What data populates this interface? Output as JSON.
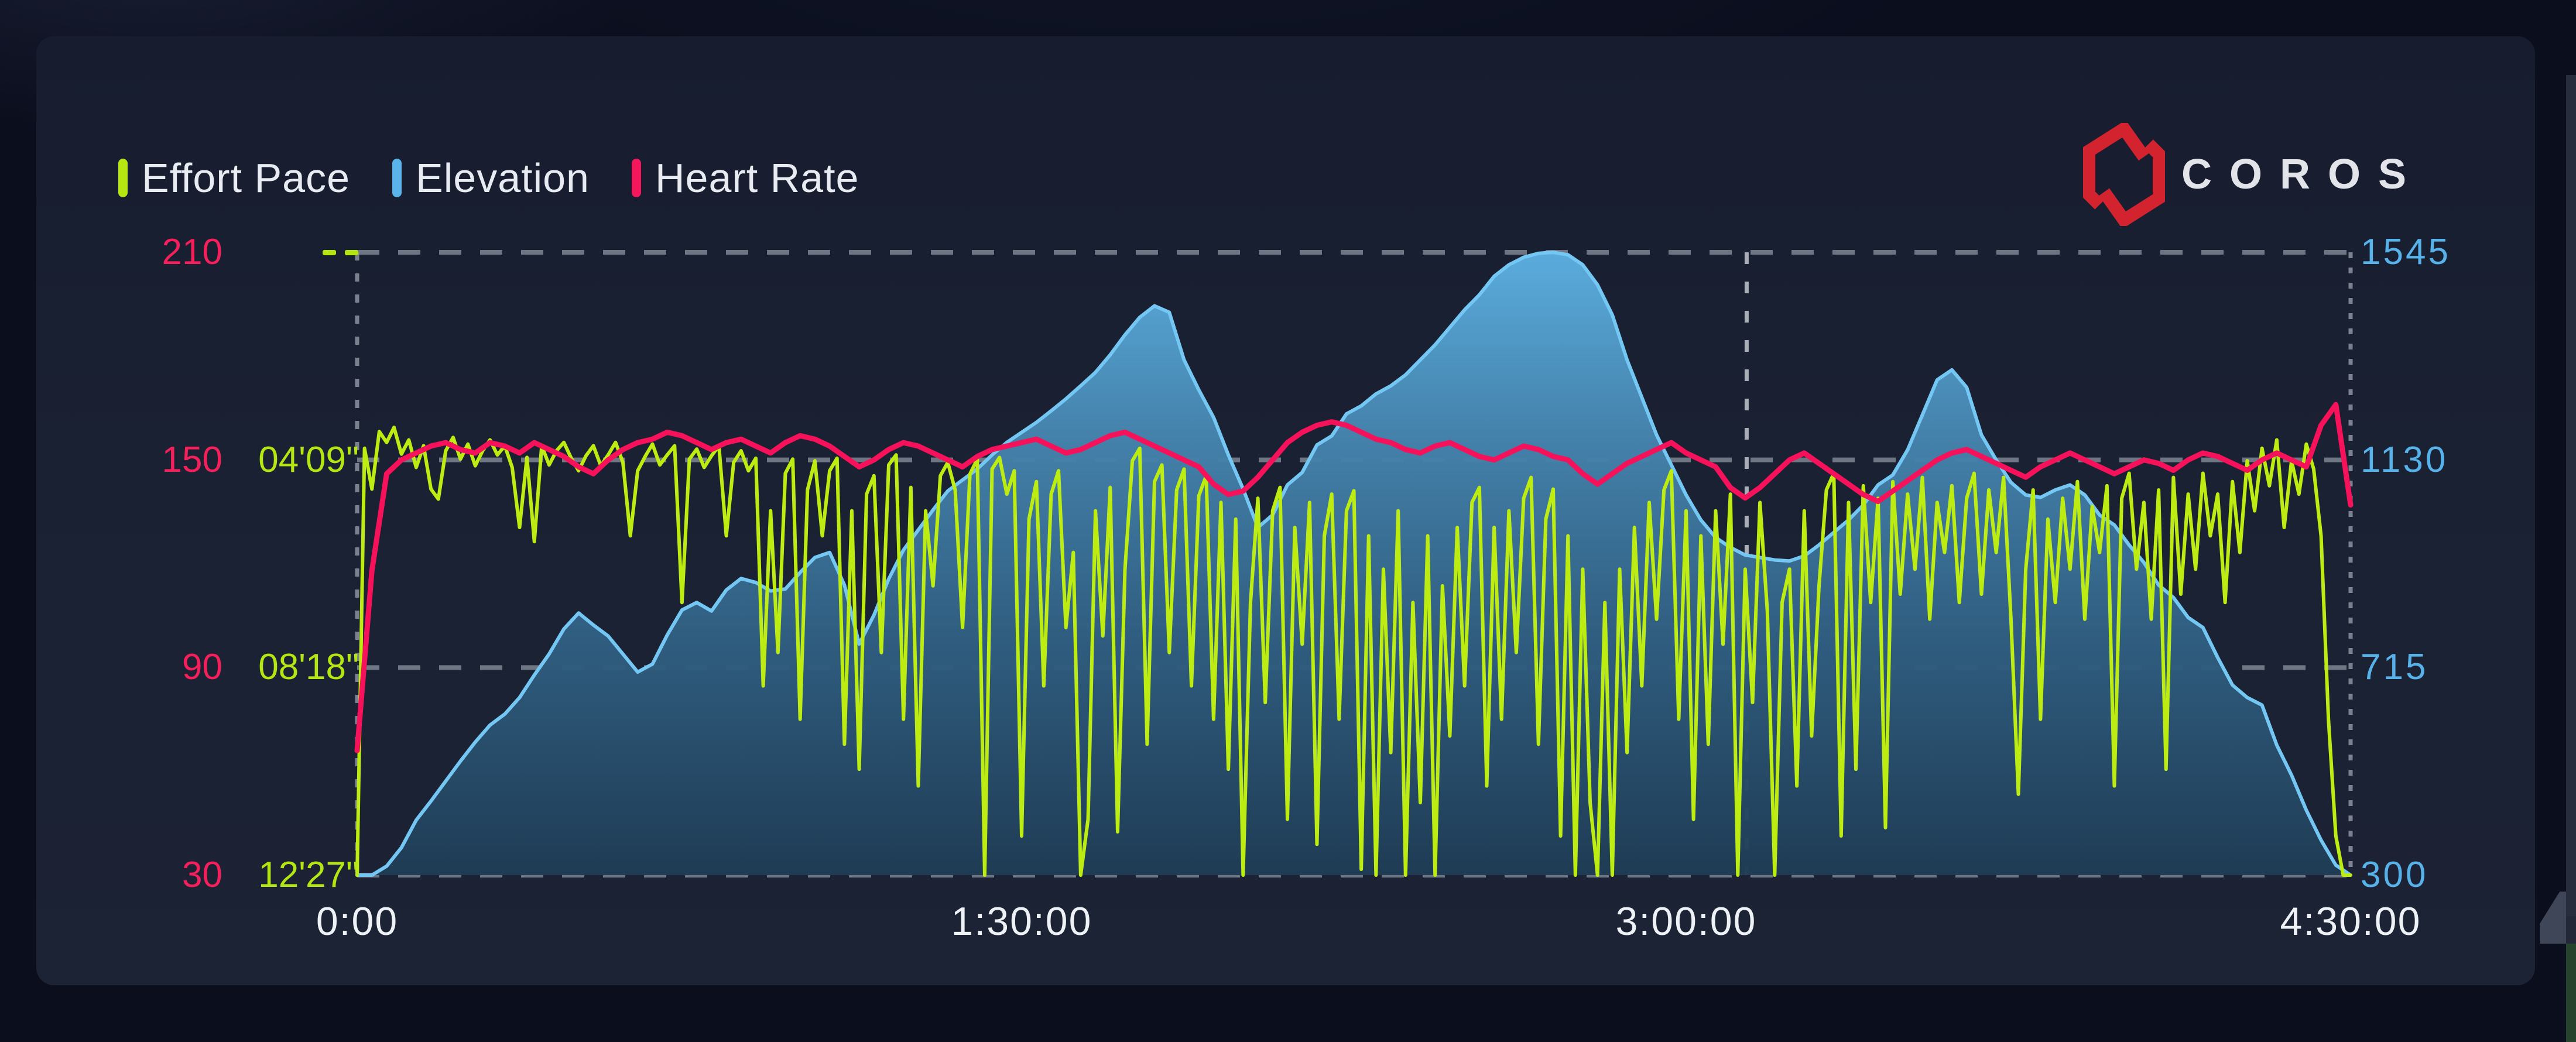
{
  "legend": {
    "items": [
      {
        "label": "Effort Pace",
        "color": "#b6e713"
      },
      {
        "label": "Elevation",
        "color": "#5ab4ea"
      },
      {
        "label": "Heart Rate",
        "color": "#f4175c"
      }
    ]
  },
  "logo": {
    "text": "COROS",
    "icon_color": "#d2232e",
    "text_color": "#e2e4e9"
  },
  "axes": {
    "grid_color": "#7e8591",
    "marker_color": "#b9bdc5",
    "edge_line_color": "#949aa5",
    "heart_rate": {
      "color": "#f4205c",
      "labels": [
        "210",
        "150",
        "90",
        "30"
      ]
    },
    "pace": {
      "color": "#b4e613",
      "labels": [
        "- -",
        "04'09\"",
        "08'18\"",
        "12'27\""
      ]
    },
    "elevation": {
      "color": "#57b2ea",
      "labels": [
        "1545",
        "1130",
        "715",
        "300"
      ]
    },
    "time": {
      "color": "#eef1f6",
      "labels": [
        "0:00",
        "1:30:00",
        "3:00:00",
        "4:30:00"
      ]
    }
  },
  "chart_data": {
    "type": "line",
    "title": "",
    "x_axis": {
      "label": "time",
      "range_min": [
        0,
        270
      ],
      "tick_labels": [
        "0:00",
        "1:30:00",
        "3:00:00",
        "4:30:00"
      ],
      "tick_minutes": [
        0,
        90,
        180,
        270
      ]
    },
    "grid": "dashed-horizontal",
    "legend_position": "top-left",
    "marker_time_min": 188.2,
    "pace_axis": {
      "top_sec": 0,
      "bottom_sec": 747,
      "tick_sec": [
        0,
        249,
        498,
        747
      ]
    },
    "hr_axis": {
      "top": 210,
      "bottom": 30,
      "ticks": [
        210,
        150,
        90,
        30
      ]
    },
    "elev_axis": {
      "top": 1545,
      "bottom": 300,
      "ticks": [
        1545,
        1130,
        715,
        300
      ]
    },
    "series": [
      {
        "name": "Effort Pace",
        "type": "line",
        "unit": "sec_per_km",
        "color": "#bdec13",
        "step_min": 1,
        "values": [
          747,
          235,
          284,
          215,
          228,
          210,
          242,
          225,
          258,
          232,
          284,
          296,
          238,
          222,
          248,
          230,
          256,
          238,
          225,
          243,
          232,
          258,
          330,
          246,
          347,
          232,
          255,
          238,
          228,
          247,
          262,
          244,
          232,
          256,
          243,
          228,
          252,
          340,
          262,
          245,
          230,
          255,
          243,
          232,
          420,
          248,
          236,
          258,
          244,
          232,
          340,
          252,
          238,
          262,
          247,
          520,
          310,
          480,
          265,
          248,
          560,
          285,
          250,
          340,
          262,
          247,
          590,
          310,
          620,
          290,
          268,
          480,
          255,
          243,
          560,
          282,
          640,
          310,
          400,
          268,
          252,
          285,
          450,
          266,
          248,
          747,
          260,
          246,
          290,
          262,
          700,
          320,
          275,
          520,
          290,
          262,
          450,
          360,
          747,
          680,
          310,
          460,
          282,
          695,
          380,
          250,
          235,
          590,
          275,
          255,
          480,
          285,
          260,
          520,
          292,
          268,
          560,
          300,
          620,
          320,
          747,
          420,
          295,
          540,
          310,
          282,
          680,
          330,
          470,
          300,
          710,
          340,
          290,
          560,
          310,
          286,
          740,
          340,
          747,
          380,
          600,
          310,
          747,
          420,
          660,
          340,
          747,
          400,
          580,
          330,
          520,
          300,
          282,
          640,
          330,
          560,
          310,
          480,
          295,
          270,
          590,
          320,
          284,
          700,
          340,
          747,
          380,
          660,
          747,
          420,
          747,
          380,
          600,
          330,
          520,
          300,
          440,
          285,
          262,
          560,
          310,
          680,
          340,
          590,
          310,
          470,
          290,
          747,
          380,
          540,
          300,
          430,
          747,
          420,
          380,
          640,
          310,
          580,
          400,
          285,
          265,
          700,
          300,
          620,
          280,
          420,
          295,
          690,
          275,
          410,
          290,
          380,
          270,
          440,
          300,
          360,
          280,
          420,
          295,
          265,
          410,
          285,
          360,
          270,
          440,
          650,
          380,
          285,
          560,
          320,
          420,
          295,
          380,
          275,
          440,
          305,
          360,
          280,
          640,
          295,
          265,
          380,
          300,
          440,
          285,
          620,
          270,
          410,
          290,
          380,
          265,
          340,
          290,
          420,
          275,
          360,
          250,
          310,
          235,
          280,
          225,
          330,
          250,
          290,
          230,
          260,
          340,
          560,
          700,
          747,
          747
        ]
      },
      {
        "name": "Elevation",
        "type": "area",
        "unit": "m",
        "color": "#74c7f3",
        "step_min": 2,
        "fill_gradient": [
          {
            "offset": "0%",
            "color": "#5cb0e2"
          },
          {
            "offset": "30%",
            "color": "#4584ae"
          },
          {
            "offset": "62%",
            "color": "#305f82"
          },
          {
            "offset": "100%",
            "color": "#1f3c55"
          }
        ],
        "values": [
          300,
          300,
          318,
          355,
          410,
          448,
          488,
          528,
          566,
          600,
          622,
          655,
          700,
          742,
          792,
          824,
          800,
          778,
          742,
          706,
          722,
          780,
          830,
          845,
          828,
          870,
          893,
          885,
          868,
          872,
          905,
          935,
          945,
          880,
          762,
          820,
          892,
          950,
          990,
          1030,
          1068,
          1090,
          1112,
          1140,
          1165,
          1185,
          1205,
          1228,
          1252,
          1278,
          1305,
          1340,
          1380,
          1415,
          1438,
          1425,
          1330,
          1270,
          1215,
          1140,
          1072,
          995,
          1020,
          1080,
          1105,
          1160,
          1178,
          1222,
          1238,
          1262,
          1278,
          1300,
          1330,
          1360,
          1395,
          1430,
          1460,
          1497,
          1520,
          1535,
          1543,
          1545,
          1540,
          1520,
          1480,
          1420,
          1330,
          1255,
          1180,
          1120,
          1060,
          1010,
          975,
          955,
          940,
          935,
          930,
          928,
          938,
          960,
          985,
          1010,
          1040,
          1080,
          1100,
          1150,
          1220,
          1290,
          1310,
          1275,
          1180,
          1130,
          1085,
          1060,
          1055,
          1070,
          1080,
          1060,
          1020,
          1000,
          960,
          925,
          880,
          855,
          815,
          795,
          735,
          680,
          655,
          640,
          560,
          500,
          430,
          370,
          320,
          300
        ]
      },
      {
        "name": "Heart Rate",
        "type": "line",
        "unit": "bpm",
        "color": "#f5125a",
        "step_min": 2,
        "values": [
          66,
          118,
          146,
          150,
          152,
          154,
          155,
          153,
          152,
          155,
          154,
          152,
          155,
          153,
          151,
          148,
          146,
          150,
          153,
          155,
          156,
          158,
          157,
          155,
          153,
          155,
          156,
          154,
          152,
          155,
          157,
          156,
          154,
          151,
          148,
          150,
          153,
          155,
          154,
          152,
          150,
          148,
          151,
          153,
          154,
          155,
          156,
          154,
          152,
          153,
          155,
          157,
          158,
          156,
          154,
          152,
          150,
          148,
          143,
          140,
          141,
          145,
          150,
          155,
          158,
          160,
          161,
          160,
          158,
          156,
          155,
          153,
          152,
          154,
          155,
          153,
          151,
          150,
          152,
          154,
          153,
          151,
          150,
          146,
          143,
          146,
          149,
          151,
          153,
          155,
          152,
          150,
          148,
          142,
          139,
          142,
          146,
          150,
          152,
          149,
          146,
          143,
          140,
          138,
          141,
          144,
          147,
          150,
          152,
          153,
          151,
          149,
          147,
          145,
          148,
          150,
          152,
          150,
          148,
          146,
          148,
          150,
          149,
          147,
          150,
          152,
          151,
          149,
          147,
          150,
          152,
          150,
          148,
          160,
          166,
          137
        ]
      }
    ]
  }
}
